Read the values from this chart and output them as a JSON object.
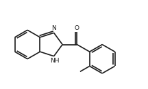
{
  "bg_color": "#ffffff",
  "line_color": "#1a1a1a",
  "line_width": 1.2,
  "font_size": 6.5,
  "figsize": [
    2.16,
    1.31
  ],
  "dpi": 100,
  "xlim": [
    0,
    10
  ],
  "ylim": [
    0,
    6.1
  ]
}
